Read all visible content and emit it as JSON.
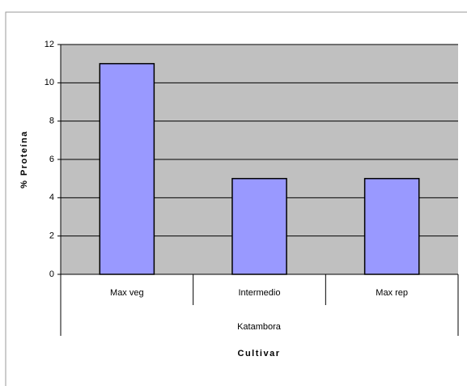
{
  "chart_data": {
    "type": "bar",
    "categories": [
      "Max veg",
      "Intermedio",
      "Max rep"
    ],
    "group": "Katambora",
    "values": [
      11,
      5,
      5
    ],
    "color": "#9999ff",
    "x_label": "Cultivar",
    "y_label": "% Proteína",
    "ylim": [
      0,
      12
    ],
    "yticks": [
      0,
      2,
      4,
      6,
      8,
      10,
      12
    ],
    "grid": true
  }
}
